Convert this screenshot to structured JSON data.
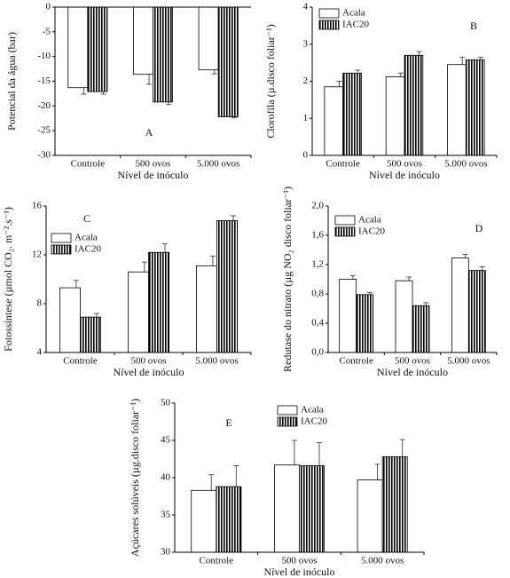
{
  "chart_data": [
    {
      "type": "bar",
      "annotation": "A",
      "ylabel": "Potencial da água  (bar)",
      "xlabel": "Nível de inóculo",
      "categories": [
        "Controle",
        "500 ovos",
        "5.000 ovos"
      ],
      "series": [
        {
          "name": "Acala",
          "color": "#ffffff",
          "hatch": "none",
          "values": [
            -16.3,
            -13.6,
            -12.7
          ],
          "errors": [
            1.3,
            2.0,
            0.8
          ]
        },
        {
          "name": "IAC20",
          "color": "#000000",
          "hatch": "vertical",
          "values": [
            -17.1,
            -19.2,
            -22.2
          ],
          "errors": [
            0.5,
            0.5,
            0.2
          ]
        }
      ],
      "ylim": [
        -30,
        0
      ],
      "yticks": [
        0,
        -5,
        -10,
        -15,
        -20,
        -25,
        -30
      ],
      "legend": false
    },
    {
      "type": "bar",
      "annotation": "B",
      "ylabel": "Clorofila   (µ.disco foliar⁻¹)",
      "xlabel": "Nível de inóculo",
      "categories": [
        "Controle",
        "500 ovos",
        "5.000 ovos"
      ],
      "series": [
        {
          "name": "Acala",
          "color": "#ffffff",
          "hatch": "none",
          "values": [
            1.85,
            2.12,
            2.45
          ],
          "errors": [
            0.15,
            0.1,
            0.2
          ]
        },
        {
          "name": "IAC20",
          "color": "#000000",
          "hatch": "vertical",
          "values": [
            2.22,
            2.7,
            2.58
          ],
          "errors": [
            0.08,
            0.1,
            0.07
          ]
        }
      ],
      "ylim": [
        0,
        4
      ],
      "yticks": [
        0,
        1,
        2,
        3,
        4
      ],
      "legend": true,
      "legend_position": "upper left"
    },
    {
      "type": "bar",
      "annotation": "C",
      "ylabel": "Fotossíntese  (µmol CO₂. m⁻².s⁻¹)",
      "xlabel": "Nível de inóculo",
      "categories": [
        "Controle",
        "500 ovos",
        "5.000 ovos"
      ],
      "series": [
        {
          "name": "Acala",
          "color": "#ffffff",
          "hatch": "none",
          "values": [
            9.3,
            10.6,
            11.1
          ],
          "errors": [
            0.6,
            0.8,
            0.8
          ]
        },
        {
          "name": "IAC20",
          "color": "#000000",
          "hatch": "vertical",
          "values": [
            6.9,
            12.2,
            14.8
          ],
          "errors": [
            0.3,
            0.7,
            0.4
          ]
        }
      ],
      "ylim": [
        4,
        16
      ],
      "yticks": [
        4,
        8,
        12,
        16
      ],
      "legend": true,
      "legend_position": "center left"
    },
    {
      "type": "bar",
      "annotation": "D",
      "ylabel": "Redutase do nitrato  (µg NO₂ disco foliar⁻¹)",
      "xlabel": "Nível de inóculo",
      "categories": [
        "Controle",
        "500 ovos",
        "5.000 ovos"
      ],
      "series": [
        {
          "name": "Acala",
          "color": "#ffffff",
          "hatch": "none",
          "values": [
            1.0,
            0.98,
            1.29
          ],
          "errors": [
            0.05,
            0.05,
            0.05
          ]
        },
        {
          "name": "IAC20",
          "color": "#000000",
          "hatch": "vertical",
          "values": [
            0.79,
            0.64,
            1.12
          ],
          "errors": [
            0.03,
            0.04,
            0.05
          ]
        }
      ],
      "ylim": [
        0,
        2
      ],
      "yticks": [
        {
          "value": 0,
          "label": "0,0"
        },
        {
          "value": 0.4,
          "label": "0,4"
        },
        {
          "value": 0.8,
          "label": "0,8"
        },
        {
          "value": 1.2,
          "label": "1,2"
        },
        {
          "value": 1.6,
          "label": "1,6"
        },
        {
          "value": 2,
          "label": "2,0"
        }
      ],
      "legend": true,
      "legend_position": "upper left"
    },
    {
      "type": "bar",
      "annotation": "E",
      "ylabel": "Açúcares solúveis   (µg.disco foliar⁻¹)",
      "xlabel": "Nível de inóculo",
      "categories": [
        "Controle",
        "500 ovos",
        "5.000 ovos"
      ],
      "series": [
        {
          "name": "Acala",
          "color": "#ffffff",
          "hatch": "none",
          "values": [
            38.3,
            41.7,
            39.7
          ],
          "errors": [
            2.1,
            3.3,
            2.1
          ]
        },
        {
          "name": "IAC20",
          "color": "#000000",
          "hatch": "vertical",
          "values": [
            38.8,
            41.6,
            42.8
          ],
          "errors": [
            2.8,
            3.1,
            2.3
          ]
        }
      ],
      "ylim": [
        30,
        50
      ],
      "yticks": [
        30,
        35,
        40,
        45,
        50
      ],
      "legend": true,
      "legend_position": "upper right"
    }
  ]
}
